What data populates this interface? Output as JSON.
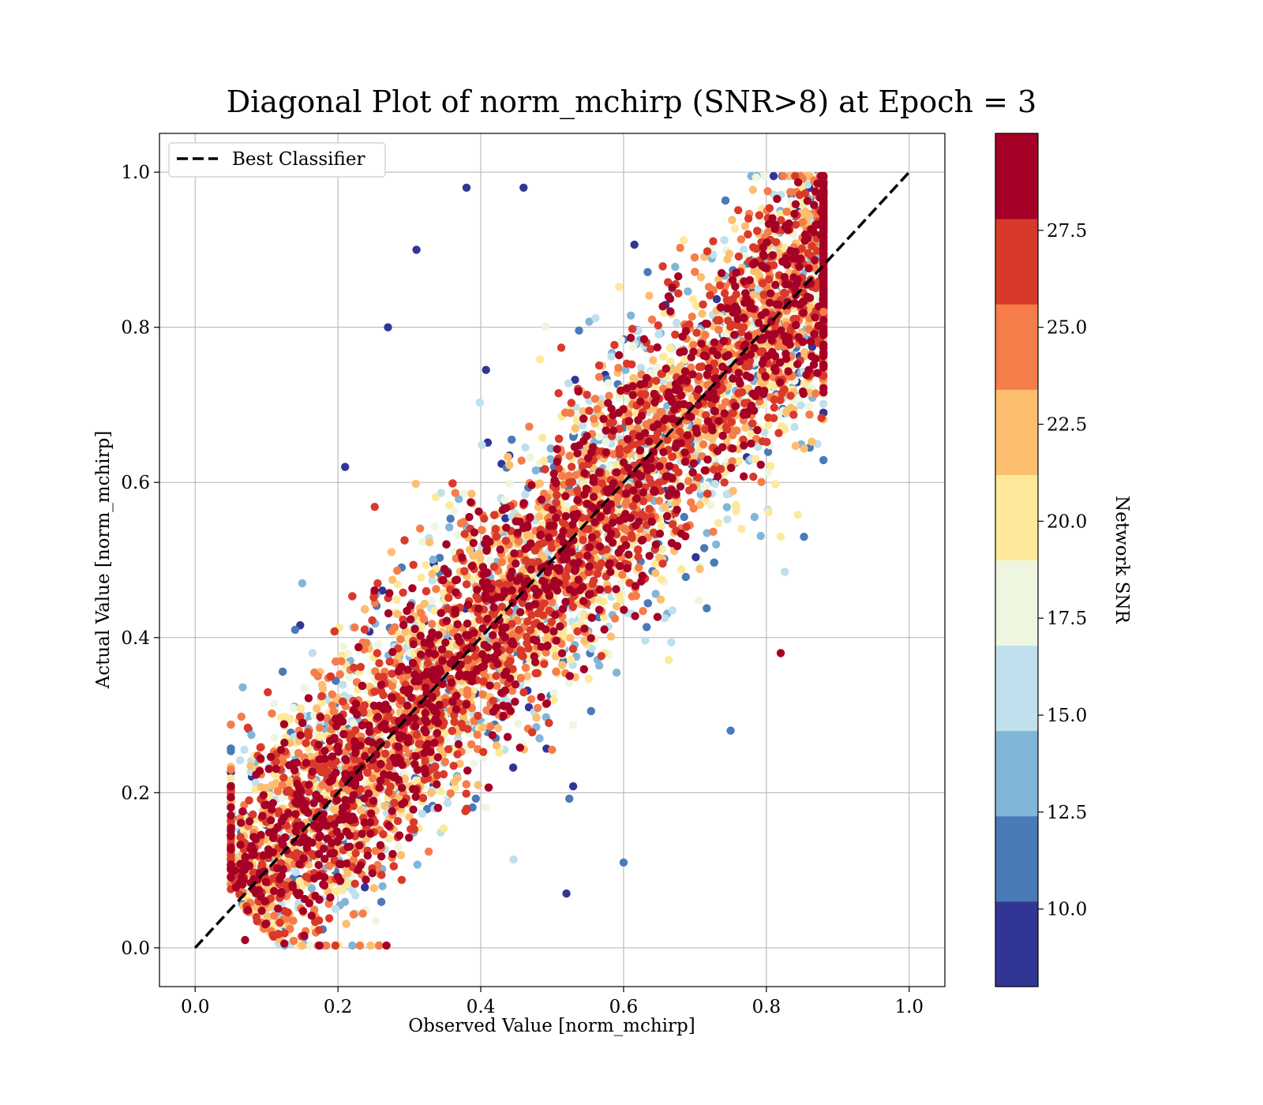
{
  "chart_data": {
    "type": "scatter",
    "title": "Diagonal Plot of norm_mchirp (SNR>8) at Epoch = 3",
    "xlabel": "Observed Value [norm_mchirp]",
    "ylabel": "Actual Value [norm_mchirp]",
    "xlim": [
      -0.05,
      1.05
    ],
    "ylim": [
      -0.05,
      1.05
    ],
    "xticks": [
      "0.0",
      "0.2",
      "0.4",
      "0.6",
      "0.8",
      "1.0"
    ],
    "yticks": [
      "0.0",
      "0.2",
      "0.4",
      "0.6",
      "0.8",
      "1.0"
    ],
    "grid": true,
    "legend": {
      "position": "top-left",
      "entries": [
        "Best Classifier"
      ]
    },
    "reference_line": {
      "name": "Best Classifier",
      "x": [
        0.0,
        1.0
      ],
      "y": [
        0.0,
        1.0
      ],
      "style": "dashed",
      "color": "#000000"
    },
    "colorbar": {
      "label": "Network SNR",
      "range": [
        8,
        30
      ],
      "ticks": [
        "10.0",
        "12.5",
        "15.0",
        "17.5",
        "20.0",
        "22.5",
        "25.0",
        "27.5"
      ],
      "tick_values": [
        10.0,
        12.5,
        15.0,
        17.5,
        20.0,
        22.5,
        25.0,
        27.5
      ],
      "bins": [
        {
          "from": 8.0,
          "to": 10.2,
          "color": "#313695"
        },
        {
          "from": 10.2,
          "to": 12.4,
          "color": "#4a7ab7"
        },
        {
          "from": 12.4,
          "to": 14.6,
          "color": "#81b6d8"
        },
        {
          "from": 14.6,
          "to": 16.8,
          "color": "#bfe0ec"
        },
        {
          "from": 16.8,
          "to": 19.0,
          "color": "#eef6e0"
        },
        {
          "from": 19.0,
          "to": 21.2,
          "color": "#fee99a"
        },
        {
          "from": 21.2,
          "to": 23.4,
          "color": "#fdbe70"
        },
        {
          "from": 23.4,
          "to": 25.6,
          "color": "#f57d4a"
        },
        {
          "from": 25.6,
          "to": 27.8,
          "color": "#d9392b"
        },
        {
          "from": 27.8,
          "to": 30.0,
          "color": "#a50026"
        }
      ]
    },
    "points_summary": {
      "x_range": [
        0.05,
        0.88
      ],
      "y_range": [
        0.0,
        1.0
      ],
      "representative_points": [
        {
          "x": 0.46,
          "y": 0.98,
          "snr": 9.5
        },
        {
          "x": 0.38,
          "y": 0.98,
          "snr": 9.5
        },
        {
          "x": 0.31,
          "y": 0.9,
          "snr": 9.5
        },
        {
          "x": 0.27,
          "y": 0.8,
          "snr": 9.5
        },
        {
          "x": 0.21,
          "y": 0.62,
          "snr": 9.5
        },
        {
          "x": 0.15,
          "y": 0.47,
          "snr": 14.0
        },
        {
          "x": 0.14,
          "y": 0.41,
          "snr": 12.0
        },
        {
          "x": 0.82,
          "y": 0.53,
          "snr": 20.0
        },
        {
          "x": 0.82,
          "y": 0.38,
          "snr": 28.5
        },
        {
          "x": 0.75,
          "y": 0.28,
          "snr": 11.0
        },
        {
          "x": 0.6,
          "y": 0.11,
          "snr": 11.0
        },
        {
          "x": 0.52,
          "y": 0.07,
          "snr": 9.5
        },
        {
          "x": 0.88,
          "y": 0.82,
          "snr": 24.0
        },
        {
          "x": 0.88,
          "y": 0.97,
          "snr": 28.5
        },
        {
          "x": 0.07,
          "y": 0.01,
          "snr": 28.5
        }
      ]
    }
  }
}
